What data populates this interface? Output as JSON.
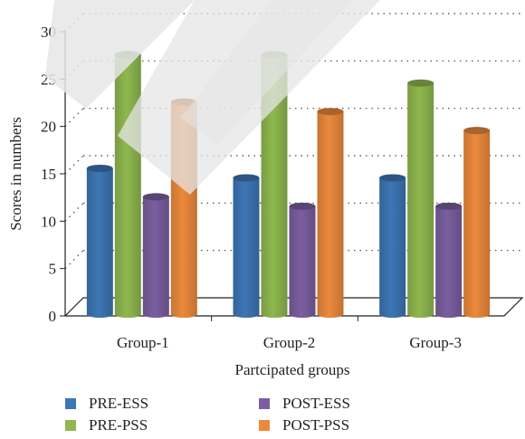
{
  "chart_data": {
    "type": "bar",
    "categories": [
      "Group-1",
      "Group-2",
      "Group-3"
    ],
    "series": [
      {
        "name": "PRE-ESS",
        "values": [
          15,
          14,
          14
        ],
        "color": "#3d76b4"
      },
      {
        "name": "PRE-PSS",
        "values": [
          27,
          27,
          24
        ],
        "color": "#8fb84f"
      },
      {
        "name": "POST-ESS",
        "values": [
          12,
          11,
          11
        ],
        "color": "#7b5ea0"
      },
      {
        "name": "POST-PSS",
        "values": [
          22,
          21,
          19
        ],
        "color": "#ec8a3c"
      }
    ],
    "xlabel": "Partcipated groups",
    "ylabel": "Scores in numbers",
    "ylim": [
      0,
      30
    ],
    "yticks": [
      "0",
      "5",
      "10",
      "15",
      "20",
      "25",
      "30"
    ],
    "grid": true,
    "legend_placement": "bottom"
  }
}
